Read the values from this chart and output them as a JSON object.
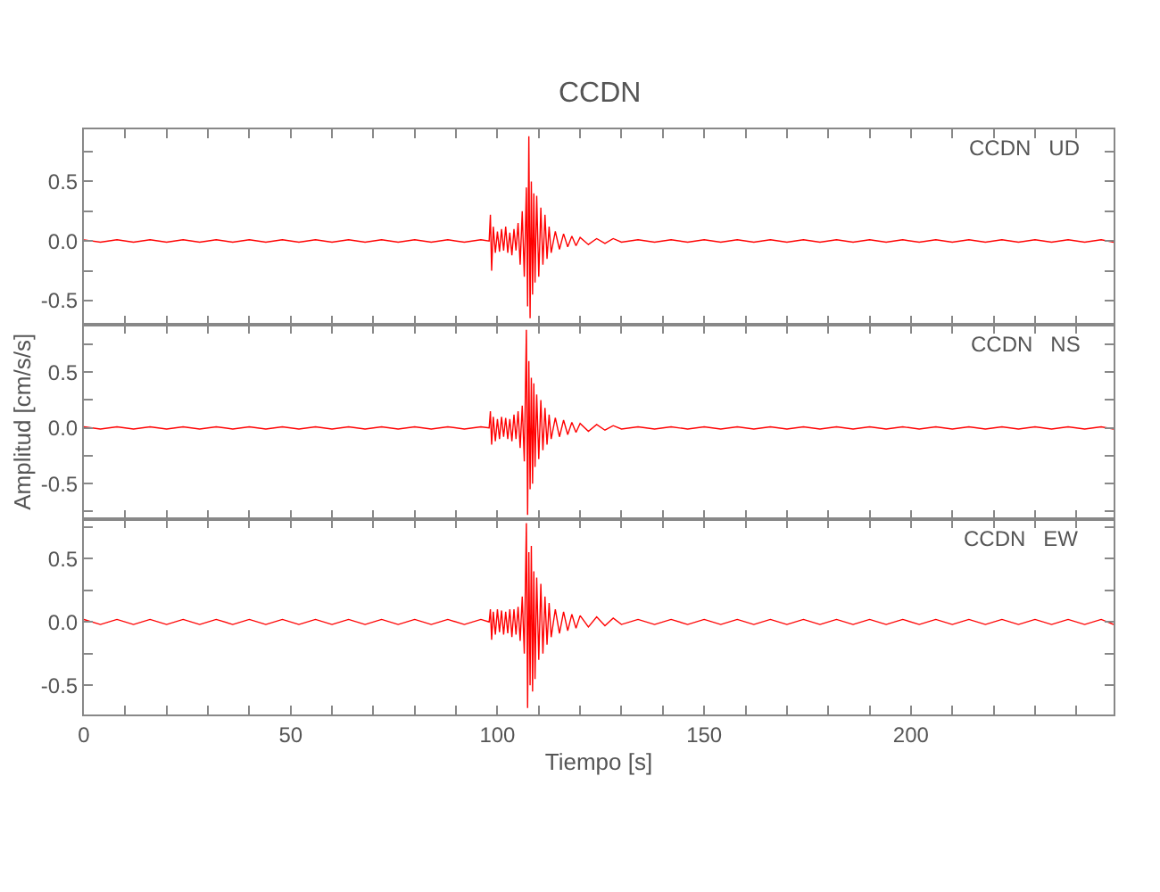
{
  "chart_data": [
    {
      "type": "line",
      "title": "CCDN",
      "annotations": [
        "CCDN   UD"
      ],
      "tick_labels": "y",
      "x": [
        0,
        4,
        8,
        12,
        16,
        20,
        24,
        28,
        32,
        36,
        40,
        44,
        48,
        52,
        56,
        60,
        64,
        68,
        72,
        76,
        80,
        84,
        88,
        92,
        96,
        98,
        98.3,
        98.6,
        99,
        99.5,
        100,
        100.5,
        101,
        101.5,
        102,
        102.5,
        103,
        103.5,
        104,
        104.5,
        105,
        105.5,
        106,
        106.5,
        107,
        107.3,
        107.6,
        107.9,
        108.2,
        108.5,
        108.8,
        109.1,
        109.5,
        110,
        110.5,
        111,
        111.5,
        112,
        112.5,
        113,
        114,
        115,
        116,
        117,
        118,
        119,
        120,
        122,
        124,
        126,
        128,
        130,
        134,
        138,
        142,
        146,
        150,
        154,
        158,
        162,
        166,
        170,
        174,
        178,
        182,
        186,
        190,
        194,
        198,
        202,
        206,
        210,
        214,
        218,
        222,
        226,
        230,
        234,
        238,
        242,
        246,
        249
      ],
      "series": [
        {
          "color": "#ff0000",
          "values": [
            0.01,
            -0.01,
            0.01,
            -0.01,
            0.01,
            -0.01,
            0.01,
            -0.01,
            0.01,
            -0.01,
            0.01,
            -0.01,
            0.01,
            -0.01,
            0.01,
            -0.01,
            0.01,
            -0.01,
            0.01,
            -0.01,
            0.01,
            -0.01,
            0.01,
            -0.01,
            0.01,
            0.0,
            0.22,
            -0.25,
            0.12,
            -0.1,
            0.08,
            -0.09,
            0.1,
            -0.08,
            0.12,
            -0.1,
            0.07,
            -0.12,
            0.1,
            -0.08,
            0.15,
            -0.2,
            0.25,
            -0.3,
            0.45,
            -0.55,
            0.88,
            -0.65,
            0.5,
            -0.45,
            0.4,
            -0.35,
            0.38,
            -0.3,
            0.28,
            -0.2,
            0.22,
            -0.15,
            0.12,
            -0.1,
            0.08,
            -0.07,
            0.06,
            -0.05,
            0.04,
            -0.04,
            0.03,
            -0.03,
            0.02,
            -0.02,
            0.02,
            -0.01,
            0.01,
            -0.01,
            0.01,
            -0.01,
            0.01,
            -0.01,
            0.01,
            -0.01,
            0.01,
            -0.01,
            0.01,
            -0.01,
            0.01,
            -0.01,
            0.01,
            -0.01,
            0.01,
            -0.01,
            0.01,
            -0.01,
            0.01,
            -0.01,
            0.01,
            -0.01,
            0.01,
            -0.01,
            0.01,
            -0.01,
            0.01,
            -0.01
          ]
        }
      ],
      "xlim": [
        0,
        249
      ],
      "ylim": [
        -0.7,
        0.94
      ],
      "xticks": [
        0,
        {
          "value": 10,
          "label": null
        },
        {
          "value": 20,
          "label": null
        },
        {
          "value": 30,
          "label": null
        },
        {
          "value": 40,
          "label": null
        },
        50,
        {
          "value": 60,
          "label": null
        },
        {
          "value": 70,
          "label": null
        },
        {
          "value": 80,
          "label": null
        },
        {
          "value": 90,
          "label": null
        },
        100,
        {
          "value": 110,
          "label": null
        },
        {
          "value": 120,
          "label": null
        },
        {
          "value": 130,
          "label": null
        },
        {
          "value": 140,
          "label": null
        },
        150,
        {
          "value": 160,
          "label": null
        },
        {
          "value": 170,
          "label": null
        },
        {
          "value": 180,
          "label": null
        },
        {
          "value": 190,
          "label": null
        },
        200,
        {
          "value": 210,
          "label": null
        },
        {
          "value": 220,
          "label": null
        },
        {
          "value": 230,
          "label": null
        },
        {
          "value": 240,
          "label": null
        }
      ],
      "yticks": [
        {
          "value": -0.5,
          "label": "-0.5"
        },
        {
          "value": -0.25,
          "label": null
        },
        {
          "value": 0,
          "label": "0.0"
        },
        {
          "value": 0.25,
          "label": null
        },
        {
          "value": 0.5,
          "label": "0.5"
        },
        {
          "value": 0.75,
          "label": null
        }
      ]
    },
    {
      "type": "line",
      "ylabel": "Amplitud [cm/s/s]",
      "annotations": [
        "CCDN   NS"
      ],
      "tick_labels": "y",
      "x": [
        0,
        4,
        8,
        12,
        16,
        20,
        24,
        28,
        32,
        36,
        40,
        44,
        48,
        52,
        56,
        60,
        64,
        68,
        72,
        76,
        80,
        84,
        88,
        92,
        96,
        98,
        98.3,
        98.6,
        99,
        99.5,
        100,
        100.5,
        101,
        101.5,
        102,
        102.5,
        103,
        103.5,
        104,
        104.5,
        105,
        105.5,
        106,
        106.5,
        107,
        107.3,
        107.6,
        107.9,
        108.2,
        108.5,
        108.8,
        109.1,
        109.5,
        110,
        110.5,
        111,
        111.5,
        112,
        112.5,
        113,
        114,
        115,
        116,
        117,
        118,
        119,
        120,
        122,
        124,
        126,
        128,
        130,
        134,
        138,
        142,
        146,
        150,
        154,
        158,
        162,
        166,
        170,
        174,
        178,
        182,
        186,
        190,
        194,
        198,
        202,
        206,
        210,
        214,
        218,
        222,
        226,
        230,
        234,
        238,
        242,
        246,
        249
      ],
      "series": [
        {
          "color": "#ff0000",
          "values": [
            0.01,
            -0.01,
            0.01,
            -0.01,
            0.01,
            -0.01,
            0.01,
            -0.01,
            0.01,
            -0.01,
            0.01,
            -0.01,
            0.01,
            -0.01,
            0.01,
            -0.01,
            0.01,
            -0.01,
            0.01,
            -0.01,
            0.01,
            -0.01,
            0.01,
            -0.01,
            0.01,
            0.0,
            0.15,
            -0.15,
            0.1,
            -0.12,
            0.08,
            -0.1,
            0.1,
            -0.08,
            0.09,
            -0.1,
            0.08,
            -0.12,
            0.12,
            -0.1,
            0.15,
            -0.18,
            0.2,
            -0.3,
            0.88,
            -0.78,
            0.6,
            -0.55,
            0.45,
            -0.5,
            0.4,
            -0.35,
            0.3,
            -0.28,
            0.25,
            -0.2,
            0.18,
            -0.15,
            0.12,
            -0.1,
            0.09,
            -0.08,
            0.07,
            -0.06,
            0.05,
            -0.04,
            0.04,
            -0.03,
            0.03,
            -0.02,
            0.02,
            -0.01,
            0.01,
            -0.01,
            0.01,
            -0.01,
            0.01,
            -0.01,
            0.01,
            -0.01,
            0.01,
            -0.01,
            0.01,
            -0.01,
            0.01,
            -0.01,
            0.01,
            -0.01,
            0.01,
            -0.01,
            0.01,
            -0.01,
            0.01,
            -0.01,
            0.01,
            -0.01,
            0.01,
            -0.01,
            0.01,
            -0.01,
            0.01,
            -0.01
          ]
        }
      ],
      "xlim": [
        0,
        249
      ],
      "ylim": [
        -0.82,
        0.93
      ],
      "xticks": [
        0,
        {
          "value": 10,
          "label": null
        },
        {
          "value": 20,
          "label": null
        },
        {
          "value": 30,
          "label": null
        },
        {
          "value": 40,
          "label": null
        },
        50,
        {
          "value": 60,
          "label": null
        },
        {
          "value": 70,
          "label": null
        },
        {
          "value": 80,
          "label": null
        },
        {
          "value": 90,
          "label": null
        },
        100,
        {
          "value": 110,
          "label": null
        },
        {
          "value": 120,
          "label": null
        },
        {
          "value": 130,
          "label": null
        },
        {
          "value": 140,
          "label": null
        },
        150,
        {
          "value": 160,
          "label": null
        },
        {
          "value": 170,
          "label": null
        },
        {
          "value": 180,
          "label": null
        },
        {
          "value": 190,
          "label": null
        },
        200,
        {
          "value": 210,
          "label": null
        },
        {
          "value": 220,
          "label": null
        },
        {
          "value": 230,
          "label": null
        },
        {
          "value": 240,
          "label": null
        }
      ],
      "yticks": [
        {
          "value": -0.75,
          "label": null
        },
        {
          "value": -0.5,
          "label": "-0.5"
        },
        {
          "value": -0.25,
          "label": null
        },
        {
          "value": 0,
          "label": "0.0"
        },
        {
          "value": 0.25,
          "label": null
        },
        {
          "value": 0.5,
          "label": "0.5"
        },
        {
          "value": 0.75,
          "label": null
        }
      ]
    },
    {
      "type": "line",
      "xlabel": "Tiempo [s]",
      "annotations": [
        "CCDN   EW"
      ],
      "x": [
        0,
        4,
        8,
        12,
        16,
        20,
        24,
        28,
        32,
        36,
        40,
        44,
        48,
        52,
        56,
        60,
        64,
        68,
        72,
        76,
        80,
        84,
        88,
        92,
        96,
        98,
        98.3,
        98.6,
        99,
        99.5,
        100,
        100.5,
        101,
        101.5,
        102,
        102.5,
        103,
        103.5,
        104,
        104.5,
        105,
        105.5,
        106,
        106.5,
        107,
        107.3,
        107.6,
        107.9,
        108.2,
        108.5,
        108.8,
        109.1,
        109.5,
        110,
        110.5,
        111,
        111.5,
        112,
        112.5,
        113,
        114,
        115,
        116,
        117,
        118,
        119,
        120,
        122,
        124,
        126,
        128,
        130,
        134,
        138,
        142,
        146,
        150,
        154,
        158,
        162,
        166,
        170,
        174,
        178,
        182,
        186,
        190,
        194,
        198,
        202,
        206,
        210,
        214,
        218,
        222,
        226,
        230,
        234,
        238,
        242,
        246,
        249
      ],
      "series": [
        {
          "color": "#ff0000",
          "values": [
            0.02,
            -0.02,
            0.02,
            -0.02,
            0.02,
            -0.02,
            0.02,
            -0.02,
            0.02,
            -0.02,
            0.02,
            -0.02,
            0.02,
            -0.02,
            0.02,
            -0.02,
            0.02,
            -0.02,
            0.02,
            -0.02,
            0.02,
            -0.02,
            0.02,
            -0.02,
            0.02,
            0.0,
            0.1,
            -0.14,
            0.08,
            -0.1,
            0.1,
            -0.08,
            0.09,
            -0.1,
            0.08,
            -0.09,
            0.1,
            -0.12,
            0.1,
            -0.1,
            0.12,
            -0.15,
            0.2,
            -0.25,
            0.78,
            -0.68,
            0.55,
            -0.5,
            0.6,
            -0.55,
            0.4,
            -0.45,
            0.35,
            -0.3,
            0.3,
            -0.25,
            0.2,
            -0.18,
            0.15,
            -0.12,
            0.1,
            -0.09,
            0.08,
            -0.07,
            0.06,
            -0.05,
            0.05,
            -0.04,
            0.04,
            -0.03,
            0.03,
            -0.02,
            0.02,
            -0.02,
            0.02,
            -0.02,
            0.02,
            -0.02,
            0.02,
            -0.02,
            0.02,
            -0.02,
            0.02,
            -0.02,
            0.02,
            -0.02,
            0.02,
            -0.02,
            0.02,
            -0.02,
            0.02,
            -0.02,
            0.02,
            -0.02,
            0.02,
            -0.02,
            0.02,
            -0.02,
            0.02,
            -0.02,
            0.02,
            -0.02
          ]
        }
      ],
      "xlim": [
        0,
        249
      ],
      "ylim": [
        -0.73,
        0.81
      ],
      "xticks": [
        0,
        {
          "value": 10,
          "label": null
        },
        {
          "value": 20,
          "label": null
        },
        {
          "value": 30,
          "label": null
        },
        {
          "value": 40,
          "label": null
        },
        50,
        {
          "value": 60,
          "label": null
        },
        {
          "value": 70,
          "label": null
        },
        {
          "value": 80,
          "label": null
        },
        {
          "value": 90,
          "label": null
        },
        100,
        {
          "value": 110,
          "label": null
        },
        {
          "value": 120,
          "label": null
        },
        {
          "value": 130,
          "label": null
        },
        {
          "value": 140,
          "label": null
        },
        150,
        {
          "value": 160,
          "label": null
        },
        {
          "value": 170,
          "label": null
        },
        {
          "value": 180,
          "label": null
        },
        {
          "value": 190,
          "label": null
        },
        200,
        {
          "value": 210,
          "label": null
        },
        {
          "value": 220,
          "label": null
        },
        {
          "value": 230,
          "label": null
        },
        {
          "value": 240,
          "label": null
        }
      ],
      "yticks": [
        {
          "value": -0.5,
          "label": "-0.5"
        },
        {
          "value": -0.25,
          "label": null
        },
        {
          "value": 0,
          "label": "0.0"
        },
        {
          "value": 0.25,
          "label": null
        },
        {
          "value": 0.5,
          "label": "0.5"
        },
        {
          "value": 0.75,
          "label": null
        }
      ]
    }
  ]
}
